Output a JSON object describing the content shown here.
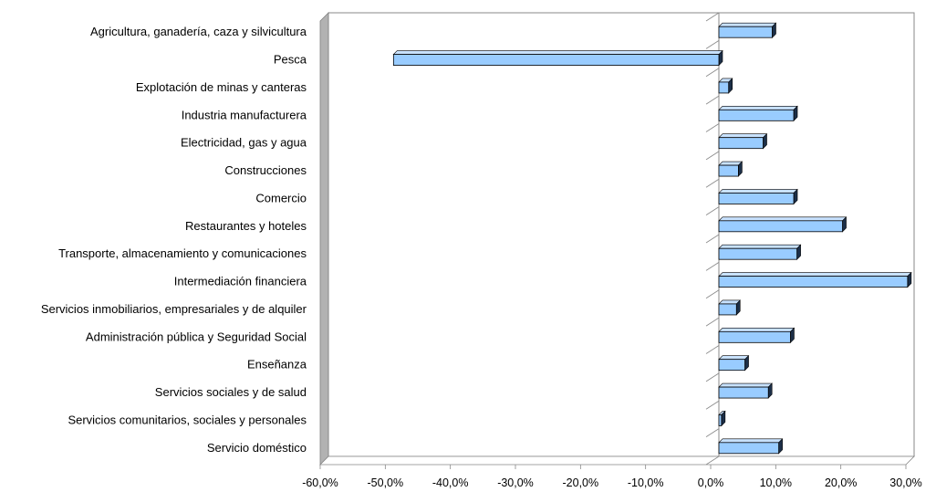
{
  "chart_data": {
    "type": "bar",
    "orientation": "horizontal",
    "style": "3d",
    "title": "",
    "xlabel": "",
    "ylabel": "",
    "categories": [
      "Agricultura, ganadería, caza y silvicultura",
      "Pesca",
      "Explotación de minas y canteras",
      "Industria manufacturera",
      "Electricidad, gas y agua",
      "Construcciones",
      "Comercio",
      "Restaurantes y hoteles",
      "Transporte, almacenamiento y comunicaciones",
      "Intermediación financiera",
      "Servicios inmobiliarios, empresariales y de alquiler",
      "Administración pública y Seguridad Social",
      "Enseñanza",
      "Servicios sociales y de salud",
      "Servicios comunitarios, sociales y personales",
      "Servicio doméstico"
    ],
    "values": [
      8.2,
      -50.0,
      1.5,
      11.5,
      6.8,
      3.0,
      11.5,
      19.0,
      12.0,
      29.0,
      2.7,
      11.0,
      4.0,
      7.6,
      0.4,
      9.2
    ],
    "xlim": [
      -60,
      30
    ],
    "xticks": [
      "-60,0%",
      "-50,0%",
      "-40,0%",
      "-30,0%",
      "-20,0%",
      "-10,0%",
      "0,0%",
      "10,0%",
      "20,0%",
      "30,0%"
    ],
    "grid": false,
    "legend": "none",
    "colors": {
      "bar_front": "#99ccff",
      "bar_top": "#c8e2ff",
      "bar_side": "#1c2f48",
      "wall": "#b2b2b2",
      "axis": "#888888"
    }
  }
}
